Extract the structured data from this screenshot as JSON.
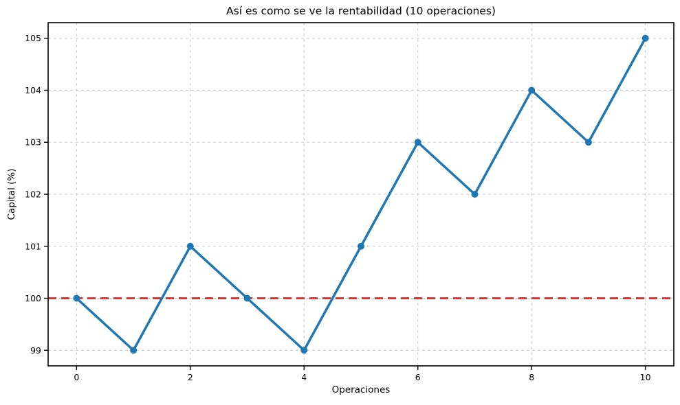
{
  "chart_data": {
    "type": "line",
    "title": "Así es como se ve la rentabilidad (10 operaciones)",
    "xlabel": "Operaciones",
    "ylabel": "Capital (%)",
    "x": [
      0,
      1,
      2,
      3,
      4,
      5,
      6,
      7,
      8,
      9,
      10
    ],
    "series": [
      {
        "name": "Capital",
        "values": [
          100,
          99,
          101,
          100,
          99,
          101,
          103,
          102,
          104,
          103,
          105
        ],
        "color": "#1f77b4",
        "style": "solid-with-circle-markers"
      }
    ],
    "reference_line": {
      "y": 100,
      "color": "#d62728",
      "style": "dashed"
    },
    "x_ticks": [
      0,
      2,
      4,
      6,
      8,
      10
    ],
    "y_ticks": [
      99,
      100,
      101,
      102,
      103,
      104,
      105
    ],
    "xlim": [
      -0.5,
      10.5
    ],
    "ylim": [
      98.7,
      105.3
    ],
    "grid": true,
    "grid_style": "dashed",
    "legend": "none",
    "colors": {
      "line": "#1f77b4",
      "baseline": "#d62728",
      "grid": "#c9c9c9",
      "spine": "#000000",
      "background": "#ffffff"
    }
  }
}
